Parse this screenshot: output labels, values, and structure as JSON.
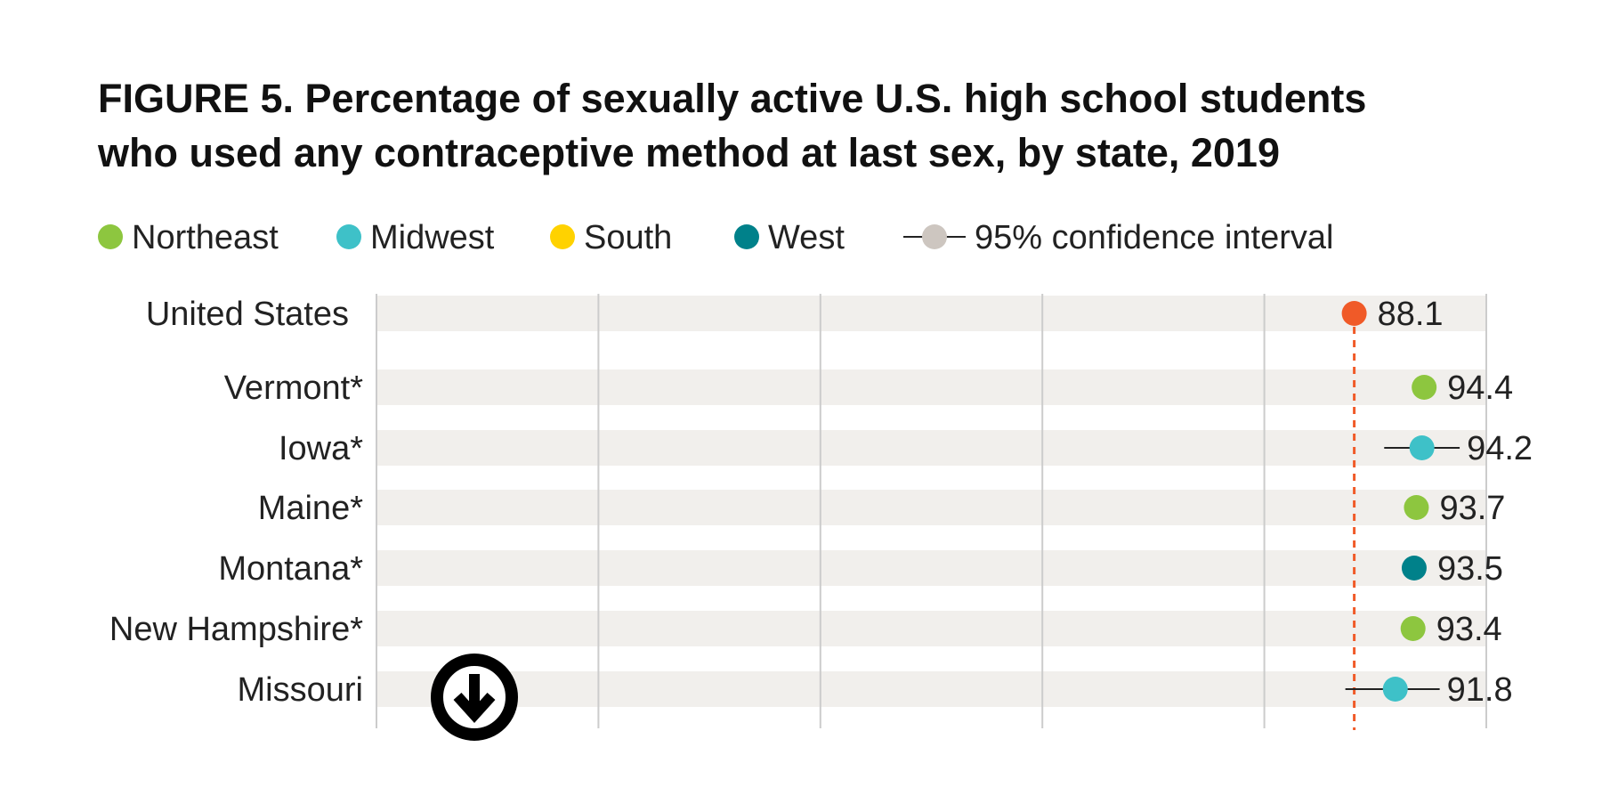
{
  "title_lines": [
    "FIGURE 5. Percentage of sexually active U.S. high school students",
    "who used any contraceptive method at last sex, by state, 2019"
  ],
  "legend": [
    {
      "label": "Northeast",
      "color": "#8dc63f",
      "kind": "dot"
    },
    {
      "label": "Midwest",
      "color": "#3ec1c8",
      "kind": "dot"
    },
    {
      "label": "South",
      "color": "#ffd200",
      "kind": "dot"
    },
    {
      "label": "West",
      "color": "#00818a",
      "kind": "dot"
    },
    {
      "label": "95% confidence interval",
      "color": "#cdc6c0",
      "kind": "ci"
    }
  ],
  "colors": {
    "us": "#f05a28",
    "band": "#f1efec",
    "grid": "#cccccc",
    "ci": "#222222"
  },
  "download_icon": "download-arrow-icon",
  "chart_data": {
    "type": "dot",
    "xlim": [
      0,
      100
    ],
    "reference": {
      "label": "United States",
      "value": 88.1,
      "ci": [
        87.3,
        88.9
      ]
    },
    "rows": [
      {
        "label": "United States",
        "value": 88.1,
        "display": "88.1",
        "region": "US",
        "ci": [
          87.3,
          88.9
        ]
      },
      {
        "label": "Vermont*",
        "value": 94.4,
        "display": "94.4",
        "region": "Northeast",
        "ci": [
          93.6,
          95.2
        ]
      },
      {
        "label": "Iowa*",
        "value": 94.2,
        "display": "94.2",
        "region": "Midwest",
        "ci": [
          90.8,
          97.6
        ]
      },
      {
        "label": "Maine*",
        "value": 93.7,
        "display": "93.7",
        "region": "Northeast",
        "ci": [
          92.9,
          94.5
        ]
      },
      {
        "label": "Montana*",
        "value": 93.5,
        "display": "93.5",
        "region": "West",
        "ci": [
          92.5,
          94.5
        ]
      },
      {
        "label": "New Hampshire*",
        "value": 93.4,
        "display": "93.4",
        "region": "Northeast",
        "ci": [
          92.8,
          94.0
        ]
      },
      {
        "label": "Missouri",
        "value": 91.8,
        "display": "91.8",
        "region": "Midwest",
        "ci": [
          87.3,
          95.8
        ]
      }
    ]
  }
}
